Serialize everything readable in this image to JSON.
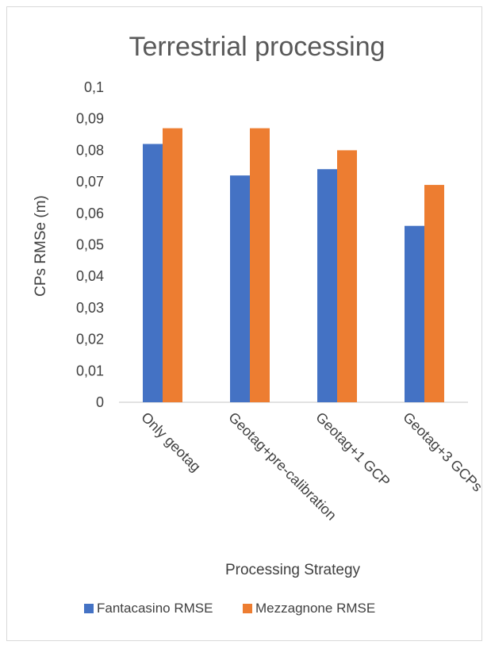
{
  "chart_data": {
    "type": "bar",
    "title": "Terrestrial processing",
    "xlabel": "Processing Strategy",
    "ylabel": "CPs RMSe (m)",
    "categories": [
      "Only geotag",
      "Geotag+pre-calibration",
      "Geotag+1 GCP",
      "Geotag+3 GCPs"
    ],
    "ylim": [
      0,
      0.1
    ],
    "yticks": [
      "0",
      "0,01",
      "0,02",
      "0,03",
      "0,04",
      "0,05",
      "0,06",
      "0,07",
      "0,08",
      "0,09",
      "0,1"
    ],
    "grid": false,
    "legend_position": "bottom",
    "series": [
      {
        "name": "Fantacasino RMSE",
        "color": "#4472C4",
        "values": [
          0.082,
          0.072,
          0.074,
          0.056
        ]
      },
      {
        "name": "Mezzagnone RMSE",
        "color": "#ED7D31",
        "values": [
          0.087,
          0.087,
          0.08,
          0.069
        ]
      }
    ]
  }
}
